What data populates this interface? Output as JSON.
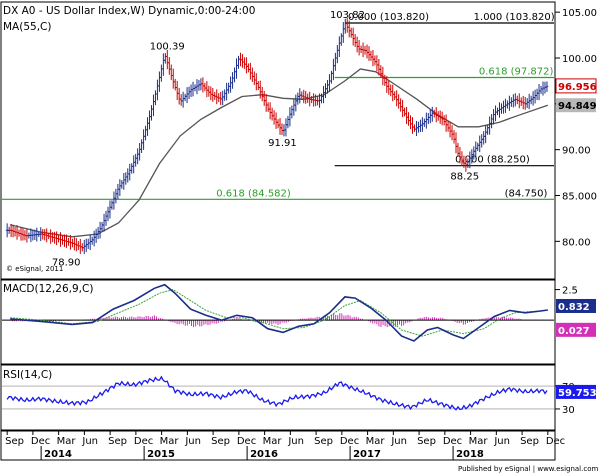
{
  "chart_data": [
    {
      "type": "ohlc",
      "title": "DX A0 - US Dollar Index,W) Dynamic,0:00-24:00",
      "ylim": [
        76,
        106
      ],
      "yticks": [
        80,
        85,
        90,
        95,
        100,
        105
      ],
      "ytick_labels": [
        "80.00",
        "85.000",
        "90.00",
        "95.00",
        "100.00",
        "105.00"
      ],
      "series": [
        {
          "name": "Price",
          "points": [
            [
              2013.7,
              81.2
            ],
            [
              2013.85,
              80.6
            ],
            [
              2014.0,
              80.8
            ],
            [
              2014.15,
              80.3
            ],
            [
              2014.3,
              79.8
            ],
            [
              2014.4,
              79.3
            ],
            [
              2014.5,
              80.2
            ],
            [
              2014.58,
              81.5
            ],
            [
              2014.66,
              83.5
            ],
            [
              2014.75,
              85.8
            ],
            [
              2014.85,
              87.5
            ],
            [
              2014.95,
              89.8
            ],
            [
              2015.05,
              93.5
            ],
            [
              2015.12,
              96.5
            ],
            [
              2015.2,
              100.39
            ],
            [
              2015.28,
              97.5
            ],
            [
              2015.35,
              95.2
            ],
            [
              2015.45,
              96.5
            ],
            [
              2015.55,
              97.2
            ],
            [
              2015.65,
              96.0
            ],
            [
              2015.75,
              95.5
            ],
            [
              2015.85,
              97.5
            ],
            [
              2015.92,
              100.0
            ],
            [
              2016.0,
              99.0
            ],
            [
              2016.1,
              97.0
            ],
            [
              2016.2,
              94.5
            ],
            [
              2016.28,
              93.0
            ],
            [
              2016.35,
              91.91
            ],
            [
              2016.42,
              94.0
            ],
            [
              2016.5,
              96.0
            ],
            [
              2016.6,
              95.5
            ],
            [
              2016.7,
              95.3
            ],
            [
              2016.8,
              97.5
            ],
            [
              2016.88,
              101.0
            ],
            [
              2016.95,
              103.82
            ],
            [
              2017.0,
              102.8
            ],
            [
              2017.08,
              101.0
            ],
            [
              2017.15,
              100.8
            ],
            [
              2017.25,
              99.5
            ],
            [
              2017.35,
              97.0
            ],
            [
              2017.45,
              95.5
            ],
            [
              2017.55,
              93.5
            ],
            [
              2017.62,
              92.2
            ],
            [
              2017.7,
              92.8
            ],
            [
              2017.8,
              94.0
            ],
            [
              2017.9,
              93.3
            ],
            [
              2018.0,
              91.5
            ],
            [
              2018.05,
              89.5
            ],
            [
              2018.12,
              88.25
            ],
            [
              2018.2,
              89.8
            ],
            [
              2018.3,
              91.5
            ],
            [
              2018.4,
              94.0
            ],
            [
              2018.5,
              94.8
            ],
            [
              2018.6,
              95.5
            ],
            [
              2018.7,
              95.0
            ],
            [
              2018.78,
              95.7
            ],
            [
              2018.85,
              96.6
            ],
            [
              2018.92,
              96.956
            ]
          ]
        },
        {
          "name": "MA(55,C)",
          "points": [
            [
              2013.7,
              81.8
            ],
            [
              2014.0,
              81.0
            ],
            [
              2014.3,
              80.5
            ],
            [
              2014.55,
              80.8
            ],
            [
              2014.75,
              82.0
            ],
            [
              2014.95,
              84.5
            ],
            [
              2015.15,
              88.5
            ],
            [
              2015.35,
              91.5
            ],
            [
              2015.55,
              93.3
            ],
            [
              2015.75,
              94.6
            ],
            [
              2015.95,
              95.8
            ],
            [
              2016.15,
              96.0
            ],
            [
              2016.35,
              95.6
            ],
            [
              2016.55,
              95.5
            ],
            [
              2016.75,
              96.0
            ],
            [
              2016.95,
              97.5
            ],
            [
              2017.1,
              98.8
            ],
            [
              2017.25,
              98.5
            ],
            [
              2017.45,
              97.0
            ],
            [
              2017.65,
              95.5
            ],
            [
              2017.85,
              93.8
            ],
            [
              2018.05,
              92.5
            ],
            [
              2018.25,
              92.5
            ],
            [
              2018.45,
              93.0
            ],
            [
              2018.65,
              93.8
            ],
            [
              2018.92,
              94.849
            ]
          ]
        }
      ],
      "markers": [
        {
          "label": "100.39",
          "x": 2015.2,
          "y": 100.39,
          "pos": "above"
        },
        {
          "label": "91.91",
          "x": 2016.35,
          "y": 91.91,
          "pos": "below"
        },
        {
          "label": "103.82",
          "x": 2016.95,
          "y": 103.82,
          "pos": "above"
        },
        {
          "label": "88.25",
          "x": 2018.12,
          "y": 88.25,
          "pos": "below"
        },
        {
          "label": "78.90",
          "x": 2014.25,
          "y": 78.9,
          "pos": "below"
        }
      ],
      "fib_lines": [
        {
          "value": 103.82,
          "labels": [
            "0.000 (103.820)",
            "1.000 (103.820)"
          ],
          "color": "#000000"
        },
        {
          "value": 97.872,
          "labels": [
            "0.618 (97.872)"
          ],
          "color": "#2e9e2e"
        },
        {
          "value": 88.25,
          "labels": [
            "0.000 (88.250)"
          ],
          "color": "#000000"
        },
        {
          "value": 84.582,
          "labels": [
            "0.618 (84.582)",
            "(84.750)"
          ],
          "color": "#2e9e2e"
        }
      ],
      "last_price": "96.956",
      "ma_value": "94.849",
      "legend": "MA(55,C)",
      "watermark": "© eSignal, 2011"
    },
    {
      "type": "line",
      "title": "MACD(12,26,9,C)",
      "ylim": [
        -3.5,
        3.2
      ],
      "yticks": [
        2.5
      ],
      "ytick_labels": [
        "2.5"
      ],
      "series": [
        {
          "name": "MACD",
          "points": [
            [
              2013.7,
              0.1
            ],
            [
              2014.0,
              -0.1
            ],
            [
              2014.3,
              -0.35
            ],
            [
              2014.5,
              -0.2
            ],
            [
              2014.7,
              0.9
            ],
            [
              2014.9,
              1.6
            ],
            [
              2015.1,
              2.6
            ],
            [
              2015.2,
              2.9
            ],
            [
              2015.3,
              2.2
            ],
            [
              2015.45,
              0.9
            ],
            [
              2015.6,
              0.4
            ],
            [
              2015.75,
              0.0
            ],
            [
              2015.9,
              0.4
            ],
            [
              2016.05,
              0.2
            ],
            [
              2016.2,
              -0.7
            ],
            [
              2016.35,
              -1.0
            ],
            [
              2016.5,
              -0.5
            ],
            [
              2016.65,
              -0.3
            ],
            [
              2016.8,
              0.6
            ],
            [
              2016.95,
              1.9
            ],
            [
              2017.05,
              1.8
            ],
            [
              2017.2,
              1.0
            ],
            [
              2017.35,
              0.0
            ],
            [
              2017.5,
              -1.3
            ],
            [
              2017.62,
              -1.7
            ],
            [
              2017.75,
              -0.8
            ],
            [
              2017.85,
              -0.6
            ],
            [
              2018.0,
              -1.2
            ],
            [
              2018.1,
              -1.5
            ],
            [
              2018.25,
              -0.6
            ],
            [
              2018.4,
              0.3
            ],
            [
              2018.55,
              0.8
            ],
            [
              2018.7,
              0.6
            ],
            [
              2018.85,
              0.75
            ],
            [
              2018.92,
              0.832
            ]
          ]
        },
        {
          "name": "Signal",
          "points": [
            [
              2013.7,
              0.2
            ],
            [
              2014.0,
              0.0
            ],
            [
              2014.3,
              -0.3
            ],
            [
              2014.55,
              -0.1
            ],
            [
              2014.75,
              0.6
            ],
            [
              2014.95,
              1.3
            ],
            [
              2015.15,
              2.2
            ],
            [
              2015.28,
              2.5
            ],
            [
              2015.45,
              1.6
            ],
            [
              2015.6,
              0.8
            ],
            [
              2015.8,
              0.2
            ],
            [
              2015.95,
              0.2
            ],
            [
              2016.15,
              -0.2
            ],
            [
              2016.35,
              -0.7
            ],
            [
              2016.55,
              -0.6
            ],
            [
              2016.75,
              0.0
            ],
            [
              2016.95,
              1.2
            ],
            [
              2017.1,
              1.6
            ],
            [
              2017.3,
              0.6
            ],
            [
              2017.5,
              -0.8
            ],
            [
              2017.7,
              -1.3
            ],
            [
              2017.9,
              -0.8
            ],
            [
              2018.1,
              -1.1
            ],
            [
              2018.3,
              -0.7
            ],
            [
              2018.45,
              0.1
            ],
            [
              2018.6,
              0.6
            ],
            [
              2018.92,
              0.805
            ]
          ]
        },
        {
          "name": "Histogram",
          "points": [
            [
              2014.0,
              -0.1
            ],
            [
              2014.3,
              -0.05
            ],
            [
              2014.7,
              0.3
            ],
            [
              2014.9,
              0.3
            ],
            [
              2015.1,
              0.4
            ],
            [
              2015.3,
              -0.3
            ],
            [
              2015.5,
              -0.6
            ],
            [
              2015.7,
              -0.3
            ],
            [
              2015.9,
              0.2
            ],
            [
              2016.1,
              -0.2
            ],
            [
              2016.3,
              -0.4
            ],
            [
              2016.5,
              0.1
            ],
            [
              2016.7,
              0.3
            ],
            [
              2016.9,
              0.6
            ],
            [
              2017.1,
              0.2
            ],
            [
              2017.3,
              -0.6
            ],
            [
              2017.5,
              -0.5
            ],
            [
              2017.7,
              0.3
            ],
            [
              2017.9,
              0.2
            ],
            [
              2018.1,
              -0.4
            ],
            [
              2018.3,
              0.2
            ],
            [
              2018.5,
              0.3
            ],
            [
              2018.7,
              0.05
            ],
            [
              2018.92,
              0.027
            ]
          ]
        }
      ],
      "macd_value": "0.832",
      "hist_value": "0.027"
    },
    {
      "type": "line",
      "title": "RSI(14,C)",
      "ylim": [
        -5,
        105
      ],
      "yticks": [
        70,
        30
      ],
      "ytick_labels": [
        "70",
        "30"
      ],
      "series": [
        {
          "name": "RSI",
          "points": [
            [
              2013.7,
              50
            ],
            [
              2013.85,
              45
            ],
            [
              2014.0,
              48
            ],
            [
              2014.15,
              43
            ],
            [
              2014.3,
              40
            ],
            [
              2014.45,
              42
            ],
            [
              2014.6,
              58
            ],
            [
              2014.75,
              75
            ],
            [
              2014.9,
              72
            ],
            [
              2015.05,
              80
            ],
            [
              2015.18,
              83
            ],
            [
              2015.3,
              62
            ],
            [
              2015.45,
              55
            ],
            [
              2015.6,
              57
            ],
            [
              2015.75,
              50
            ],
            [
              2015.9,
              60
            ],
            [
              2016.0,
              62
            ],
            [
              2016.15,
              45
            ],
            [
              2016.3,
              38
            ],
            [
              2016.45,
              50
            ],
            [
              2016.6,
              52
            ],
            [
              2016.75,
              58
            ],
            [
              2016.9,
              76
            ],
            [
              2017.0,
              68
            ],
            [
              2017.15,
              58
            ],
            [
              2017.3,
              46
            ],
            [
              2017.45,
              38
            ],
            [
              2017.6,
              33
            ],
            [
              2017.75,
              46
            ],
            [
              2017.9,
              38
            ],
            [
              2018.05,
              30
            ],
            [
              2018.15,
              34
            ],
            [
              2018.3,
              48
            ],
            [
              2018.45,
              60
            ],
            [
              2018.55,
              65
            ],
            [
              2018.7,
              60
            ],
            [
              2018.85,
              62
            ],
            [
              2018.92,
              59.753
            ]
          ]
        }
      ],
      "rsi_value": "59.753"
    }
  ],
  "x_axis": {
    "range": [
      2013.62,
      2018.98
    ],
    "month_ticks": [
      {
        "label": "Sep",
        "x": 2013.67
      },
      {
        "label": "Dec",
        "x": 2013.92
      },
      {
        "label": "Mar",
        "x": 2014.17
      },
      {
        "label": "Jun",
        "x": 2014.42
      },
      {
        "label": "Sep",
        "x": 2014.67
      },
      {
        "label": "Dec",
        "x": 2014.92
      },
      {
        "label": "Mar",
        "x": 2015.17
      },
      {
        "label": "Jun",
        "x": 2015.42
      },
      {
        "label": "Sep",
        "x": 2015.67
      },
      {
        "label": "Dec",
        "x": 2015.92
      },
      {
        "label": "Mar",
        "x": 2016.17
      },
      {
        "label": "Jun",
        "x": 2016.42
      },
      {
        "label": "Sep",
        "x": 2016.67
      },
      {
        "label": "Dec",
        "x": 2016.92
      },
      {
        "label": "Mar",
        "x": 2017.17
      },
      {
        "label": "Jun",
        "x": 2017.42
      },
      {
        "label": "Sep",
        "x": 2017.67
      },
      {
        "label": "Dec",
        "x": 2017.92
      },
      {
        "label": "Mar",
        "x": 2018.17
      },
      {
        "label": "Jun",
        "x": 2018.42
      },
      {
        "label": "Sep",
        "x": 2018.67
      },
      {
        "label": "Dec",
        "x": 2018.92
      }
    ],
    "year_ticks": [
      {
        "label": "2014",
        "x": 2014.0
      },
      {
        "label": "2015",
        "x": 2015.0
      },
      {
        "label": "2016",
        "x": 2016.0
      },
      {
        "label": "2017",
        "x": 2017.0
      },
      {
        "label": "2018",
        "x": 2018.0
      }
    ]
  },
  "footer": "Published by eSignal | www.esignal.com",
  "colors": {
    "price": "#cc0000",
    "ma": "#555555",
    "macd": "#1a2e8a",
    "signal": "#3aa33a",
    "histogram": "#d42fb8",
    "rsi": "#1a1aee",
    "fib_green": "#2e9e2e",
    "last_box": "#cc0000",
    "ma_box": "#b8b8b8",
    "macd_box": "#1a2e8a",
    "hist_box": "#d42fb8",
    "rsi_box": "#1a1aee"
  }
}
